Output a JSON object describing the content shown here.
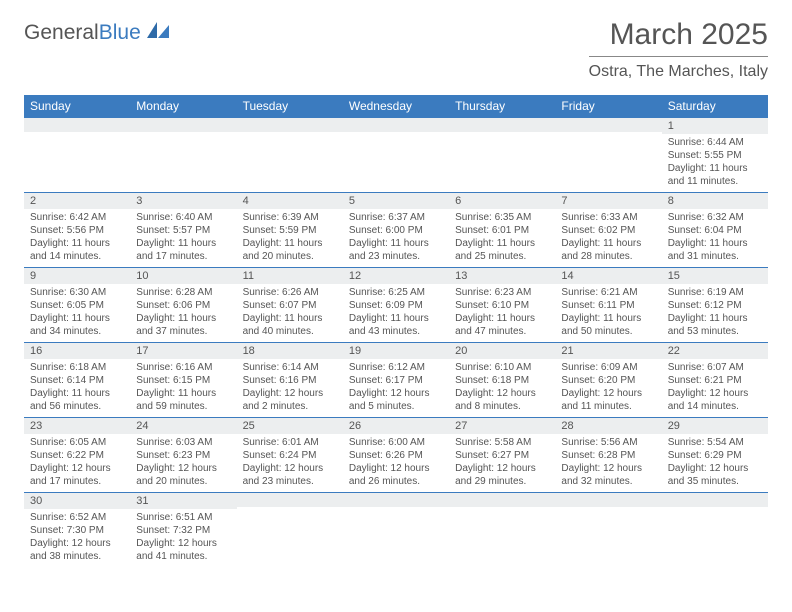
{
  "logo": {
    "text1": "General",
    "text2": "Blue"
  },
  "title": "March 2025",
  "location": "Ostra, The Marches, Italy",
  "colors": {
    "header_bg": "#3b7bbf",
    "header_fg": "#ffffff",
    "text": "#555555",
    "daynum_bg": "#eceeef",
    "cell_border": "#3b7bbf"
  },
  "weekdays": [
    "Sunday",
    "Monday",
    "Tuesday",
    "Wednesday",
    "Thursday",
    "Friday",
    "Saturday"
  ],
  "weeks": [
    [
      null,
      null,
      null,
      null,
      null,
      null,
      {
        "n": "1",
        "sunrise": "Sunrise: 6:44 AM",
        "sunset": "Sunset: 5:55 PM",
        "daylight": "Daylight: 11 hours and 11 minutes."
      }
    ],
    [
      {
        "n": "2",
        "sunrise": "Sunrise: 6:42 AM",
        "sunset": "Sunset: 5:56 PM",
        "daylight": "Daylight: 11 hours and 14 minutes."
      },
      {
        "n": "3",
        "sunrise": "Sunrise: 6:40 AM",
        "sunset": "Sunset: 5:57 PM",
        "daylight": "Daylight: 11 hours and 17 minutes."
      },
      {
        "n": "4",
        "sunrise": "Sunrise: 6:39 AM",
        "sunset": "Sunset: 5:59 PM",
        "daylight": "Daylight: 11 hours and 20 minutes."
      },
      {
        "n": "5",
        "sunrise": "Sunrise: 6:37 AM",
        "sunset": "Sunset: 6:00 PM",
        "daylight": "Daylight: 11 hours and 23 minutes."
      },
      {
        "n": "6",
        "sunrise": "Sunrise: 6:35 AM",
        "sunset": "Sunset: 6:01 PM",
        "daylight": "Daylight: 11 hours and 25 minutes."
      },
      {
        "n": "7",
        "sunrise": "Sunrise: 6:33 AM",
        "sunset": "Sunset: 6:02 PM",
        "daylight": "Daylight: 11 hours and 28 minutes."
      },
      {
        "n": "8",
        "sunrise": "Sunrise: 6:32 AM",
        "sunset": "Sunset: 6:04 PM",
        "daylight": "Daylight: 11 hours and 31 minutes."
      }
    ],
    [
      {
        "n": "9",
        "sunrise": "Sunrise: 6:30 AM",
        "sunset": "Sunset: 6:05 PM",
        "daylight": "Daylight: 11 hours and 34 minutes."
      },
      {
        "n": "10",
        "sunrise": "Sunrise: 6:28 AM",
        "sunset": "Sunset: 6:06 PM",
        "daylight": "Daylight: 11 hours and 37 minutes."
      },
      {
        "n": "11",
        "sunrise": "Sunrise: 6:26 AM",
        "sunset": "Sunset: 6:07 PM",
        "daylight": "Daylight: 11 hours and 40 minutes."
      },
      {
        "n": "12",
        "sunrise": "Sunrise: 6:25 AM",
        "sunset": "Sunset: 6:09 PM",
        "daylight": "Daylight: 11 hours and 43 minutes."
      },
      {
        "n": "13",
        "sunrise": "Sunrise: 6:23 AM",
        "sunset": "Sunset: 6:10 PM",
        "daylight": "Daylight: 11 hours and 47 minutes."
      },
      {
        "n": "14",
        "sunrise": "Sunrise: 6:21 AM",
        "sunset": "Sunset: 6:11 PM",
        "daylight": "Daylight: 11 hours and 50 minutes."
      },
      {
        "n": "15",
        "sunrise": "Sunrise: 6:19 AM",
        "sunset": "Sunset: 6:12 PM",
        "daylight": "Daylight: 11 hours and 53 minutes."
      }
    ],
    [
      {
        "n": "16",
        "sunrise": "Sunrise: 6:18 AM",
        "sunset": "Sunset: 6:14 PM",
        "daylight": "Daylight: 11 hours and 56 minutes."
      },
      {
        "n": "17",
        "sunrise": "Sunrise: 6:16 AM",
        "sunset": "Sunset: 6:15 PM",
        "daylight": "Daylight: 11 hours and 59 minutes."
      },
      {
        "n": "18",
        "sunrise": "Sunrise: 6:14 AM",
        "sunset": "Sunset: 6:16 PM",
        "daylight": "Daylight: 12 hours and 2 minutes."
      },
      {
        "n": "19",
        "sunrise": "Sunrise: 6:12 AM",
        "sunset": "Sunset: 6:17 PM",
        "daylight": "Daylight: 12 hours and 5 minutes."
      },
      {
        "n": "20",
        "sunrise": "Sunrise: 6:10 AM",
        "sunset": "Sunset: 6:18 PM",
        "daylight": "Daylight: 12 hours and 8 minutes."
      },
      {
        "n": "21",
        "sunrise": "Sunrise: 6:09 AM",
        "sunset": "Sunset: 6:20 PM",
        "daylight": "Daylight: 12 hours and 11 minutes."
      },
      {
        "n": "22",
        "sunrise": "Sunrise: 6:07 AM",
        "sunset": "Sunset: 6:21 PM",
        "daylight": "Daylight: 12 hours and 14 minutes."
      }
    ],
    [
      {
        "n": "23",
        "sunrise": "Sunrise: 6:05 AM",
        "sunset": "Sunset: 6:22 PM",
        "daylight": "Daylight: 12 hours and 17 minutes."
      },
      {
        "n": "24",
        "sunrise": "Sunrise: 6:03 AM",
        "sunset": "Sunset: 6:23 PM",
        "daylight": "Daylight: 12 hours and 20 minutes."
      },
      {
        "n": "25",
        "sunrise": "Sunrise: 6:01 AM",
        "sunset": "Sunset: 6:24 PM",
        "daylight": "Daylight: 12 hours and 23 minutes."
      },
      {
        "n": "26",
        "sunrise": "Sunrise: 6:00 AM",
        "sunset": "Sunset: 6:26 PM",
        "daylight": "Daylight: 12 hours and 26 minutes."
      },
      {
        "n": "27",
        "sunrise": "Sunrise: 5:58 AM",
        "sunset": "Sunset: 6:27 PM",
        "daylight": "Daylight: 12 hours and 29 minutes."
      },
      {
        "n": "28",
        "sunrise": "Sunrise: 5:56 AM",
        "sunset": "Sunset: 6:28 PM",
        "daylight": "Daylight: 12 hours and 32 minutes."
      },
      {
        "n": "29",
        "sunrise": "Sunrise: 5:54 AM",
        "sunset": "Sunset: 6:29 PM",
        "daylight": "Daylight: 12 hours and 35 minutes."
      }
    ],
    [
      {
        "n": "30",
        "sunrise": "Sunrise: 6:52 AM",
        "sunset": "Sunset: 7:30 PM",
        "daylight": "Daylight: 12 hours and 38 minutes."
      },
      {
        "n": "31",
        "sunrise": "Sunrise: 6:51 AM",
        "sunset": "Sunset: 7:32 PM",
        "daylight": "Daylight: 12 hours and 41 minutes."
      },
      null,
      null,
      null,
      null,
      null
    ]
  ]
}
